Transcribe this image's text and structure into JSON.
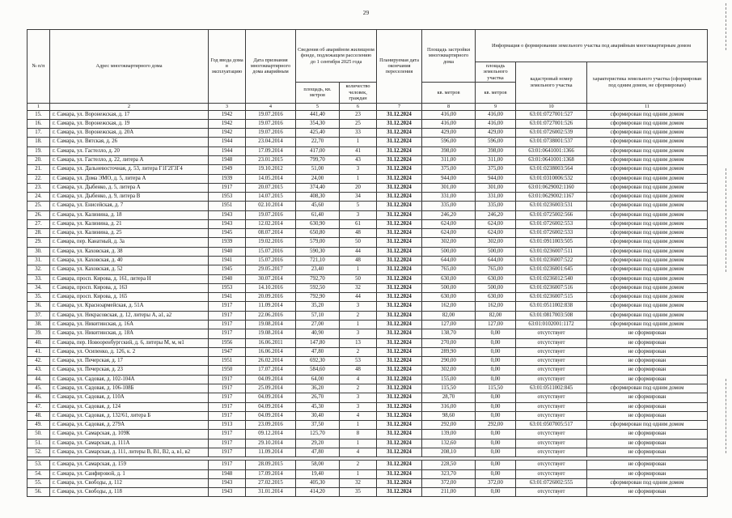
{
  "page": {
    "number": "29"
  },
  "table": {
    "headers": {
      "num": "№ п/п",
      "address": "Адрес многоквартирного дома",
      "year": "Год ввода дома в эксплуатацию",
      "date_declared": "Дата признания многоквартирного дома аварийным",
      "fund_group": "Сведения об аварийном жилищном фонде, подлежащем расселению до 1 сентября 2025 года",
      "fund_area": "площадь, кв. метров",
      "fund_people": "количество человек, граждан",
      "resettle_date": "Планируемая дата окончания переселения",
      "footprint": "Площадь застройки многоквартирного дома",
      "footprint_unit": "кв. метров",
      "land_group": "Информация о формировании земельного участка под аварийным многоквартирным домом",
      "land_area": "площадь земельного участка",
      "land_area_unit": "кв. метров",
      "cadastre": "кадастровый номер земельного участка",
      "characteristic": "характеристика земельного участка (сформирован под одним домом, не сформирован)"
    },
    "column_numbers": [
      "1",
      "2",
      "3",
      "4",
      "5",
      "6",
      "7",
      "8",
      "9",
      "10",
      "11"
    ],
    "gap_after": [
      "52."
    ],
    "rows": [
      [
        "15.",
        "г. Самара, ул. Воронежская, д. 17",
        "1942",
        "19.07.2016",
        "441,40",
        "23",
        "31.12.2024",
        "416,00",
        "416,00",
        "63:01:0727001:527",
        "сформирован под одним домом"
      ],
      [
        "16.",
        "г. Самара, ул. Воронежская, д. 19",
        "1942",
        "19.07.2016",
        "354,30",
        "25",
        "31.12.2024",
        "416,00",
        "416,00",
        "63:01:0727001:526",
        "сформирован под одним домом"
      ],
      [
        "17.",
        "г. Самара, ул. Воронежская, д. 20А",
        "1942",
        "19.07.2016",
        "425,40",
        "33",
        "31.12.2024",
        "429,00",
        "429,00",
        "63:01:0726002:539",
        "сформирован под одним домом"
      ],
      [
        "18.",
        "г. Самара, ул. Вятская, д. 26",
        "1944",
        "23.04.2014",
        "22,70",
        "1",
        "31.12.2024",
        "596,00",
        "596,00",
        "63:01:0738001:537",
        "сформирован под одним домом"
      ],
      [
        "19.",
        "г. Самара, ул. Гастелло, д. 20",
        "1944",
        "17.09.2014",
        "417,00",
        "41",
        "31.12.2024",
        "398,00",
        "398,00",
        "63:01:0641001:1366",
        "сформирован под одним домом"
      ],
      [
        "20.",
        "г. Самара, ул. Гастелло, д. 22, литера А",
        "1948",
        "23.01.2015",
        "799,70",
        "43",
        "31.12.2024",
        "311,00",
        "311,00",
        "63:01:0641001:1368",
        "сформирован под одним домом"
      ],
      [
        "21.",
        "г. Самара, ул. Дальневосточная, д. 53, литера Г1Г2Г3Г4",
        "1949",
        "19.10.2012",
        "51,00",
        "3",
        "31.12.2024",
        "375,00",
        "375,00",
        "63:01:0238003:564",
        "сформирован под одним домом"
      ],
      [
        "22.",
        "г. Самара, ул. Дома ЭМО, д. 5, литера А",
        "1939",
        "14.05.2014",
        "24,00",
        "1",
        "31.12.2024",
        "944,00",
        "944,00",
        "63:01:0310006:532",
        "сформирован под одним домом"
      ],
      [
        "23.",
        "г. Самара, ул. Дыбенко, д. 5, литера А",
        "1917",
        "20.07.2015",
        "374,40",
        "20",
        "31.12.2024",
        "301,00",
        "301,00",
        "63:01:0629002:1160",
        "сформирован под одним домом"
      ],
      [
        "24.",
        "г. Самара, ул. Дыбенко, д. 9, литера В",
        "1953",
        "14.07.2015",
        "408,30",
        "34",
        "31.12.2024",
        "331,00",
        "331,00",
        "63:01:0629002:1167",
        "сформирован под одним домом"
      ],
      [
        "25.",
        "г. Самара, ул. Енисейская, д. 7",
        "1951",
        "02.10.2014",
        "45,60",
        "5",
        "31.12.2024",
        "335,00",
        "335,00",
        "63:01:0236003:531",
        "сформирован под одним домом"
      ],
      [
        "26.",
        "г. Самара, ул. Калинина, д. 18",
        "1943",
        "19.07.2016",
        "61,40",
        "3",
        "31.12.2024",
        "246,20",
        "246,20",
        "63:01:0725002:566",
        "сформирован под одним домом"
      ],
      [
        "27.",
        "г. Самара, ул. Калинина, д. 21",
        "1943",
        "12.02.2014",
        "630,90",
        "61",
        "31.12.2024",
        "624,00",
        "624,00",
        "63:01:0726002:553",
        "сформирован под одним домом"
      ],
      [
        "28.",
        "г. Самара, ул. Калинина, д. 25",
        "1945",
        "08.07.2014",
        "650,80",
        "48",
        "31.12.2024",
        "624,00",
        "624,00",
        "63:01:0726002:533",
        "сформирован под одним домом"
      ],
      [
        "29.",
        "г. Самара, пер. Канатный, д. 3а",
        "1939",
        "19.02.2016",
        "579,00",
        "50",
        "31.12.2024",
        "302,00",
        "302,00",
        "63:01:0911003:505",
        "сформирован под одним домом"
      ],
      [
        "30.",
        "г. Самара, ул. Каховская, д. 38",
        "1940",
        "15.07.2016",
        "590,30",
        "44",
        "31.12.2024",
        "500,00",
        "500,00",
        "63:01:0236007:511",
        "сформирован под одним домом"
      ],
      [
        "31.",
        "г. Самара, ул. Каховская, д. 40",
        "1941",
        "15.07.2016",
        "721,10",
        "48",
        "31.12.2024",
        "644,00",
        "644,00",
        "63:01:0236007:522",
        "сформирован под одним домом"
      ],
      [
        "32.",
        "г. Самара, ул. Каховская, д. 52",
        "1945",
        "29.05.2017",
        "23,40",
        "1",
        "31.12.2024",
        "765,00",
        "765,00",
        "63:01:0236001:645",
        "сформирован под одним домом"
      ],
      [
        "33.",
        "г. Самара, просп. Кирова, д. 161, литера Н",
        "1940",
        "30.07.2014",
        "792,70",
        "50",
        "31.12.2024",
        "630,00",
        "630,00",
        "63:01:0236012:540",
        "сформирован под одним домом"
      ],
      [
        "34.",
        "г. Самара, просп. Кирова, д. 163",
        "1953",
        "14.10.2016",
        "592,50",
        "32",
        "31.12.2024",
        "500,00",
        "500,00",
        "63:01:0236007:516",
        "сформирован под одним домом"
      ],
      [
        "35.",
        "г. Самара, просп. Кирова, д. 165",
        "1941",
        "20.09.2016",
        "792,90",
        "44",
        "31.12.2024",
        "630,00",
        "630,00",
        "63:01:0236007:515",
        "сформирован под одним домом"
      ],
      [
        "36.",
        "г. Самара, ул. Красноармейская, д. 51А",
        "1917",
        "11.09.2014",
        "35,20",
        "3",
        "31.12.2024",
        "162,00",
        "162,00",
        "63:01:0511002:838",
        "сформирован под одним домом"
      ],
      [
        "37.",
        "г. Самара, ул. Некрасовская, д. 12, литеры А, а1, а2",
        "1917",
        "22.06.2016",
        "57,10",
        "2",
        "31.12.2024",
        "82,00",
        "82,00",
        "63:01:0817003:508",
        "сформирован под одним домом"
      ],
      [
        "38.",
        "г. Самара, ул. Никитинская, д. 16А",
        "1917",
        "19.08.2014",
        "27,00",
        "1",
        "31.12.2024",
        "127,00",
        "127,00",
        "63:01:0102001:1172",
        "сформирован под одним домом"
      ],
      [
        "39.",
        "г. Самара, ул. Никитинская, д. 18А",
        "1917",
        "19.08.2014",
        "40,90",
        "3",
        "31.12.2024",
        "138,70",
        "0,00",
        "отсутствует",
        "не сформирован"
      ],
      [
        "40.",
        "г. Самара, пер. Новооренбургский, д. 6, литеры М, м, м1",
        "1956",
        "16.06.2011",
        "147,80",
        "13",
        "31.12.2024",
        "270,00",
        "0,00",
        "отсутствует",
        "не сформирован"
      ],
      [
        "41.",
        "г. Самара, ул. Осипенко, д. 126, к. 2",
        "1947",
        "16.06.2014",
        "47,80",
        "2",
        "31.12.2024",
        "289,90",
        "0,00",
        "отсутствует",
        "не сформирован"
      ],
      [
        "42.",
        "г. Самара, ул. Печерская, д. 17",
        "1951",
        "26.02.2014",
        "692,30",
        "53",
        "31.12.2024",
        "290,00",
        "0,00",
        "отсутствует",
        "не сформирован"
      ],
      [
        "43.",
        "г. Самара, ул. Печерская, д. 23",
        "1950",
        "17.07.2014",
        "584,60",
        "48",
        "31.12.2024",
        "302,00",
        "0,00",
        "отсутствует",
        "не сформирован"
      ],
      [
        "44.",
        "г. Самара, ул. Садовая, д. 102-104А",
        "1917",
        "04.09.2014",
        "64,00",
        "4",
        "31.12.2024",
        "155,00",
        "0,00",
        "отсутствует",
        "не сформирован"
      ],
      [
        "45.",
        "г. Самара, ул. Садовая, д. 106-108Б",
        "1917",
        "25.09.2014",
        "36,20",
        "2",
        "31.12.2024",
        "115,50",
        "115,50",
        "63:01:0511002:845",
        "сформирован под одним домом"
      ],
      [
        "46.",
        "г. Самара, ул. Садовая, д. 110А",
        "1917",
        "04.09.2014",
        "26,70",
        "3",
        "31.12.2024",
        "28,70",
        "0,00",
        "отсутствует",
        "не сформирован"
      ],
      [
        "47.",
        "г. Самара, ул. Садовая, д. 124",
        "1917",
        "04.09.2014",
        "45,30",
        "3",
        "31.12.2024",
        "316,00",
        "0,00",
        "отсутствует",
        "не сформирован"
      ],
      [
        "48.",
        "г. Самара, ул. Садовая, д. 132/61, литера Б",
        "1917",
        "04.09.2014",
        "30,40",
        "4",
        "31.12.2024",
        "98,60",
        "0,00",
        "отсутствует",
        "не сформирован"
      ],
      [
        "49.",
        "г. Самара, ул. Садовая, д. 279А",
        "1913",
        "23.09.2016",
        "37,50",
        "1",
        "31.12.2024",
        "292,00",
        "292,00",
        "63:01:0507005:517",
        "сформирован под одним домом"
      ],
      [
        "50.",
        "г. Самара, ул. Самарская, д. 109К",
        "1917",
        "09.12.2014",
        "125,70",
        "8",
        "31.12.2024",
        "139,00",
        "0,00",
        "отсутствует",
        "не сформирован"
      ],
      [
        "51.",
        "г. Самара, ул. Самарская, д. 111А",
        "1917",
        "29.10.2014",
        "29,20",
        "1",
        "31.12.2024",
        "132,60",
        "0,00",
        "отсутствует",
        "не сформирован"
      ],
      [
        "52.",
        "г. Самара, ул. Самарская, д. 111, литеры В, В1, В2, а, в1, в2",
        "1917",
        "11.09.2014",
        "47,80",
        "4",
        "31.12.2024",
        "208,10",
        "0,00",
        "отсутствует",
        "не сформирован"
      ],
      [
        "53.",
        "г. Самара, ул. Самарская, д. 159",
        "1917",
        "28.09.2015",
        "58,00",
        "2",
        "31.12.2024",
        "228,50",
        "0,00",
        "отсутствует",
        "не сформирован"
      ],
      [
        "54.",
        "г. Самара, ул. Санфировой, д. 1",
        "1948",
        "17.09.2014",
        "19,40",
        "1",
        "31.12.2024",
        "323,70",
        "0,00",
        "отсутствует",
        "не сформирован"
      ],
      [
        "55.",
        "г. Самара, ул. Свободы, д. 112",
        "1943",
        "27.02.2015",
        "405,30",
        "32",
        "31.12.2024",
        "372,00",
        "372,00",
        "63:01:0726002:555",
        "сформирован под одним домом"
      ],
      [
        "56.",
        "г. Самара, ул. Свободы, д. 118",
        "1943",
        "31.01.2014",
        "414,20",
        "35",
        "31.12.2024",
        "211,00",
        "0,00",
        "отсутствует",
        "не сформирован"
      ]
    ]
  }
}
